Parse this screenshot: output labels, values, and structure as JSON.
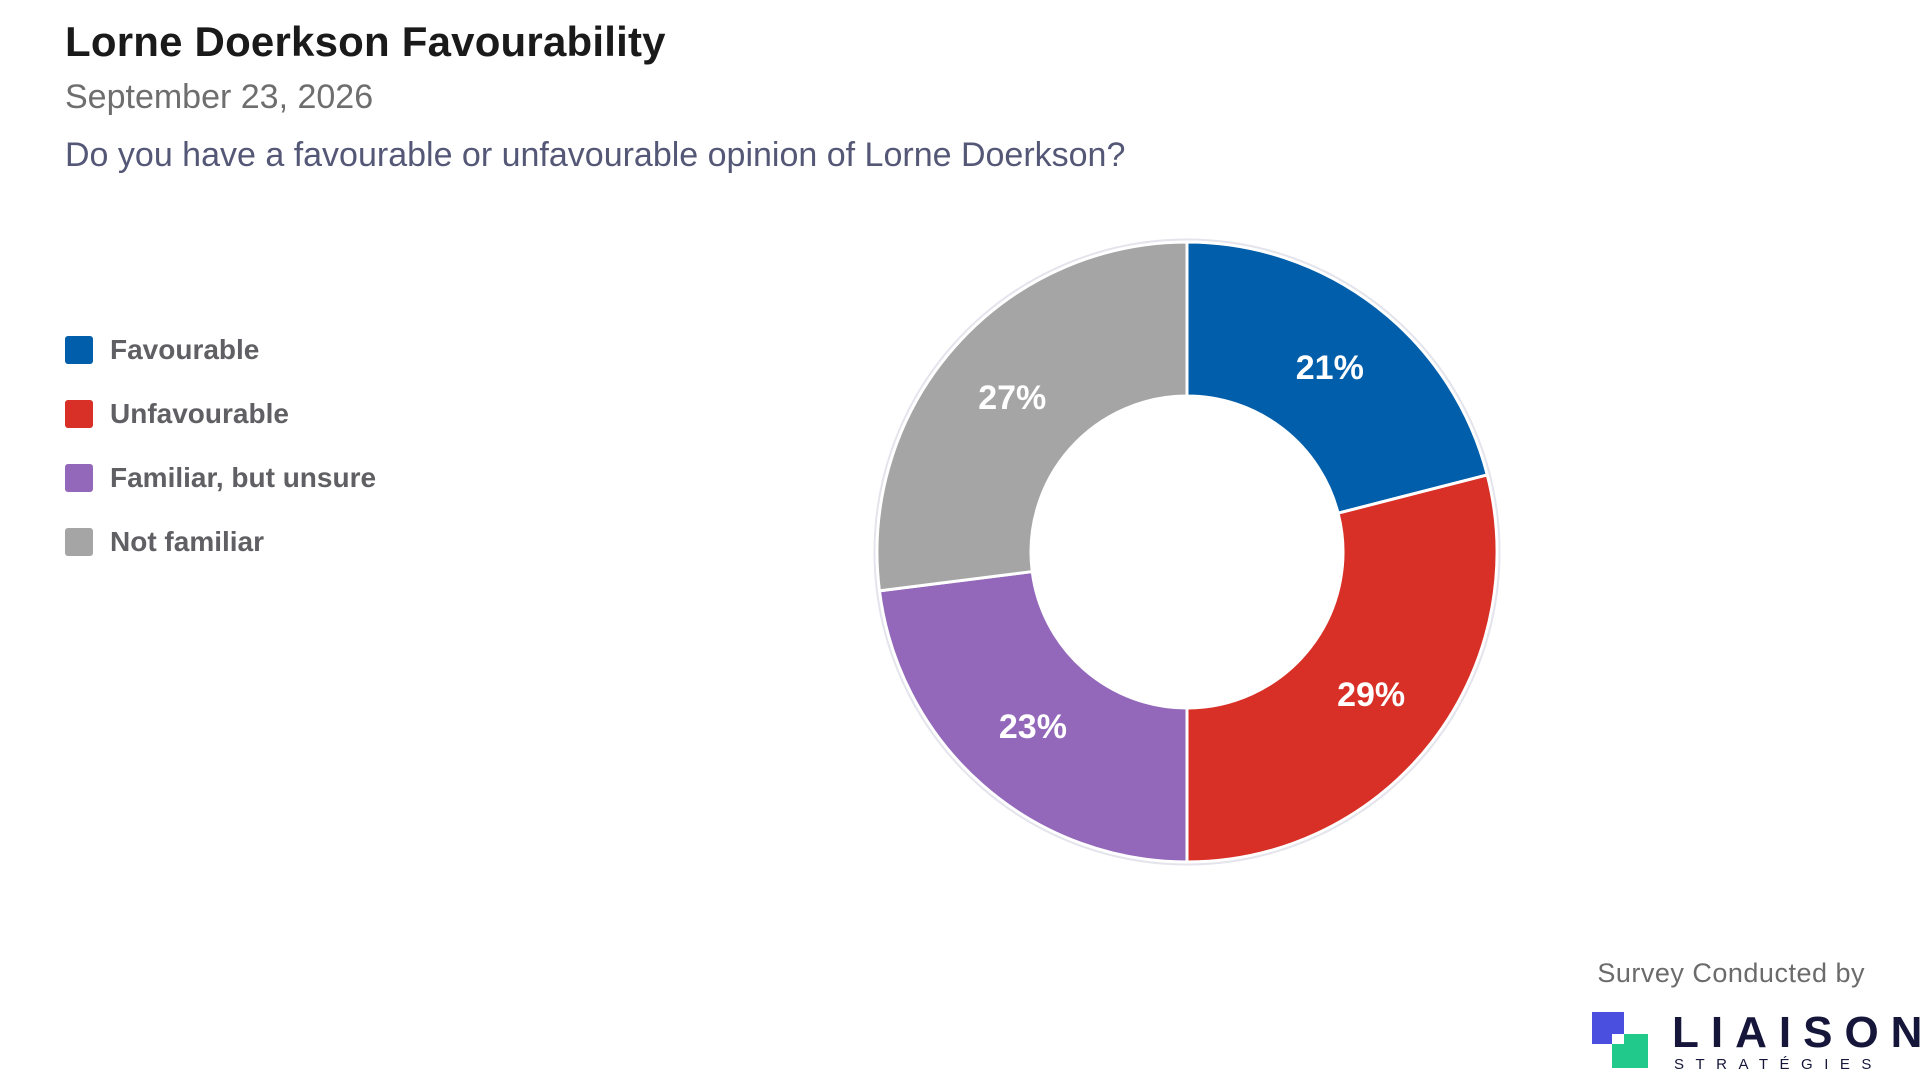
{
  "header": {
    "title": "Lorne Doerkson Favourability",
    "subtitle": "September 23, 2026",
    "question": "Do you have a favourable or unfavourable opinion of Lorne Doerkson?"
  },
  "chart_data": {
    "type": "pie",
    "donut": true,
    "title": "Lorne Doerkson Favourability",
    "subtitle": "September 23, 2026",
    "categories": [
      "Favourable",
      "Unfavourable",
      "Familiar, but unsure",
      "Not familiar"
    ],
    "values": [
      21,
      29,
      23,
      27
    ],
    "labels": [
      "21%",
      "29%",
      "23%",
      "27%"
    ],
    "colors": [
      "#005eab",
      "#d82f27",
      "#9368bb",
      "#a5a5a5"
    ],
    "legend_placement": "left"
  },
  "legend": {
    "items": [
      {
        "label": "Favourable",
        "color": "#005eab"
      },
      {
        "label": "Unfavourable",
        "color": "#d82f27"
      },
      {
        "label": "Familiar, but unsure",
        "color": "#9368bb"
      },
      {
        "label": "Not familiar",
        "color": "#a5a5a5"
      }
    ]
  },
  "footer": {
    "credit": "Survey Conducted by",
    "logo_word": "LIAISON",
    "logo_sub": "STRATÉGIES"
  }
}
